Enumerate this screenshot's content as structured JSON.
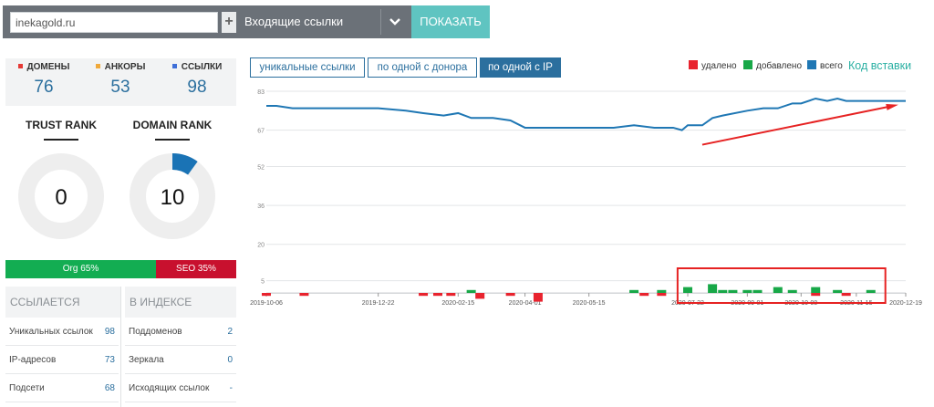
{
  "search": {
    "domain_value": "inekagold.ru",
    "plus_label": "+",
    "link_type": "Входящие ссылки",
    "show_label": "ПОКАЗАТЬ"
  },
  "stats": [
    {
      "label": "ДОМЕНЫ",
      "value": "76",
      "color": "#e53935"
    },
    {
      "label": "АНКОРЫ",
      "value": "53",
      "color": "#f0a93b"
    },
    {
      "label": "ССЫЛКИ",
      "value": "98",
      "color": "#3f6fd8"
    }
  ],
  "ranks": {
    "trust": {
      "title": "TRUST RANK",
      "value": "0",
      "fraction": 0
    },
    "domain": {
      "title": "DOMAIN RANK",
      "value": "10",
      "fraction": 0.1
    },
    "ring_fill_color": "#1a73b5",
    "ring_track_color": "#eeeeee"
  },
  "traffic": {
    "org_label": "Org 65%",
    "org_percent": 65,
    "org_color": "#13ad52",
    "seo_label": "SEO 35%",
    "seo_percent": 35,
    "seo_color": "#c8102e"
  },
  "tables": {
    "left": {
      "header": "ССЫЛАЕТСЯ",
      "rows": [
        {
          "label": "Уникальных ссылок",
          "value": "98"
        },
        {
          "label": "IP-адресов",
          "value": "73"
        },
        {
          "label": "Подсети",
          "value": "68"
        }
      ]
    },
    "right": {
      "header": "В ИНДЕКСЕ",
      "rows": [
        {
          "label": "Поддоменов",
          "value": "2"
        },
        {
          "label": "Зеркала",
          "value": "0"
        },
        {
          "label": "Исходящих ссылок",
          "value": "-"
        }
      ]
    }
  },
  "chart_tabs": [
    {
      "label": "уникальные ссылки",
      "active": false
    },
    {
      "label": "по одной с донора",
      "active": false
    },
    {
      "label": "по одной с IP",
      "active": true
    }
  ],
  "legend": [
    {
      "label": "удалено",
      "color": "#e8232e"
    },
    {
      "label": "добавлено",
      "color": "#18a848"
    },
    {
      "label": "всего",
      "color": "#1f77b4"
    }
  ],
  "embed_code_label": "Код вставки",
  "colors": {
    "accent": "#2b6f9e",
    "teal": "#5fc4c1",
    "line": "#1f77b4",
    "annotation": "#e62222"
  },
  "chart_data": {
    "type": "line",
    "title": "",
    "xlabel": "",
    "ylabel": "",
    "x_ticks": [
      "2019-10-06",
      "2019-12-22",
      "2020-02-15",
      "2020-04-01",
      "2020-05-15",
      "2020-07-22",
      "2020-09-01",
      "2020-10-08",
      "2020-11-15",
      "2020-12-19"
    ],
    "x_range": [
      "2019-10-06",
      "2020-12-19"
    ],
    "y_ticks": [
      "83",
      "67",
      "52",
      "36",
      "20",
      "5"
    ],
    "ylim": [
      0,
      83
    ],
    "grid": true,
    "series": [
      {
        "name": "всего",
        "x": [
          "2019-10-06",
          "2019-10-13",
          "2019-10-24",
          "2019-11-08",
          "2019-12-01",
          "2019-12-22",
          "2020-01-10",
          "2020-01-22",
          "2020-02-05",
          "2020-02-15",
          "2020-02-24",
          "2020-03-10",
          "2020-03-22",
          "2020-04-01",
          "2020-04-20",
          "2020-05-15",
          "2020-06-01",
          "2020-06-15",
          "2020-06-29",
          "2020-07-12",
          "2020-07-18",
          "2020-07-22",
          "2020-08-01",
          "2020-08-08",
          "2020-08-15",
          "2020-09-01",
          "2020-09-12",
          "2020-09-22",
          "2020-10-02",
          "2020-10-08",
          "2020-10-18",
          "2020-10-26",
          "2020-11-02",
          "2020-11-08",
          "2020-11-15",
          "2020-11-25",
          "2020-12-05",
          "2020-12-19"
        ],
        "values": [
          77,
          77,
          76,
          76,
          76,
          76,
          75,
          74,
          73,
          74,
          72,
          72,
          71,
          68,
          68,
          68,
          68,
          69,
          68,
          68,
          67,
          69,
          69,
          72,
          73,
          75,
          76,
          76,
          78,
          78,
          80,
          79,
          80,
          79,
          79,
          79,
          79,
          79
        ]
      },
      {
        "name": "добавлено",
        "type": "bar",
        "x": [
          "2020-02-24",
          "2020-06-15",
          "2020-07-04",
          "2020-07-22",
          "2020-08-08",
          "2020-08-15",
          "2020-08-22",
          "2020-09-01",
          "2020-09-08",
          "2020-09-22",
          "2020-10-02",
          "2020-10-18",
          "2020-11-02",
          "2020-11-25"
        ],
        "values": [
          1,
          1,
          1,
          2,
          3,
          1,
          1,
          1,
          1,
          2,
          1,
          2,
          1,
          1
        ]
      },
      {
        "name": "удалено",
        "type": "bar",
        "x": [
          "2019-10-06",
          "2019-11-01",
          "2020-01-22",
          "2020-02-01",
          "2020-02-10",
          "2020-03-01",
          "2020-03-22",
          "2020-04-10",
          "2020-06-22",
          "2020-07-04",
          "2020-10-18",
          "2020-11-08"
        ],
        "values": [
          -1,
          -1,
          -1,
          -1,
          -1,
          -2,
          -1,
          -3,
          -1,
          -1,
          -1,
          -1
        ]
      }
    ]
  }
}
